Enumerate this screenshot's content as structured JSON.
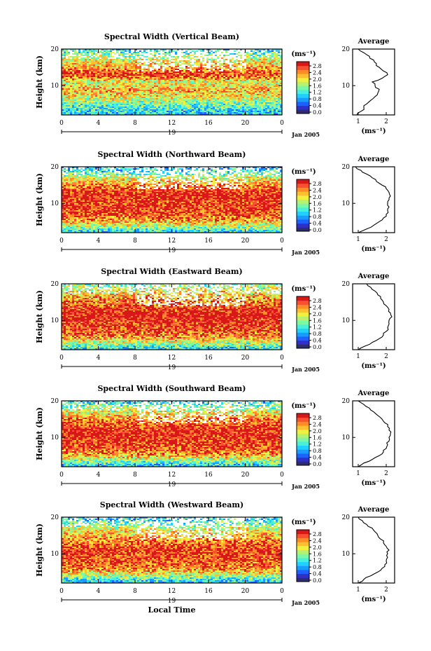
{
  "figure": {
    "x_title": "Local Time",
    "y_title": "Height (km)",
    "colorbar_unit": "(ms⁻¹)",
    "average_title": "Average",
    "average_unit": "(ms⁻¹)",
    "date_label": "Jan 2005",
    "day_label": "19",
    "colormap": [
      "#2c2c6e",
      "#3030c8",
      "#1d62ff",
      "#1a9cff",
      "#20d0ff",
      "#48f0d8",
      "#7cf8a4",
      "#b8f070",
      "#f0f040",
      "#ffc030",
      "#ff8a28",
      "#f85030",
      "#d81818"
    ]
  },
  "chart_data": [
    {
      "type": "heatmap",
      "title": "Spectral Width (Vertical Beam)",
      "xlabel": "",
      "ylabel": "Height (km)",
      "x_ticks": [
        "0",
        "4",
        "8",
        "12",
        "16",
        "20",
        "0"
      ],
      "y_ticks": [
        "10",
        "20"
      ],
      "xlim": [
        0,
        24
      ],
      "ylim": [
        2,
        20
      ],
      "colorbar": {
        "ticks": [
          "0.0",
          "0.4",
          "0.8",
          "1.2",
          "1.6",
          "2.0",
          "2.4",
          "2.8"
        ],
        "range": [
          0,
          2.8
        ]
      },
      "profile": {
        "title": "Average",
        "x_ticks": [
          "1",
          "2"
        ],
        "y_ticks": [
          "10",
          "20"
        ],
        "xlim": [
          0.8,
          2.3
        ],
        "height": [
          2,
          3,
          4,
          5,
          6,
          7,
          8,
          9,
          10,
          11,
          12,
          13,
          14,
          15,
          16,
          17,
          18,
          19,
          20
        ],
        "value": [
          0.95,
          1.1,
          1.2,
          1.3,
          1.45,
          1.6,
          1.7,
          1.75,
          1.6,
          1.5,
          1.85,
          2.05,
          1.9,
          1.75,
          1.65,
          1.55,
          1.4,
          1.2,
          1.0
        ]
      }
    },
    {
      "type": "heatmap",
      "title": "Spectral Width (Northward Beam)",
      "xlabel": "",
      "ylabel": "Height (km)",
      "x_ticks": [
        "0",
        "4",
        "8",
        "12",
        "16",
        "20",
        "0"
      ],
      "y_ticks": [
        "10",
        "20"
      ],
      "xlim": [
        0,
        24
      ],
      "ylim": [
        2,
        20
      ],
      "colorbar": {
        "ticks": [
          "0.0",
          "0.4",
          "0.8",
          "1.2",
          "1.6",
          "2.0",
          "2.4",
          "2.8"
        ],
        "range": [
          0,
          2.8
        ]
      },
      "profile": {
        "title": "Average",
        "x_ticks": [
          "1",
          "2"
        ],
        "y_ticks": [
          "10",
          "20"
        ],
        "xlim": [
          0.8,
          2.3
        ],
        "height": [
          2,
          3,
          4,
          5,
          6,
          7,
          8,
          9,
          10,
          11,
          12,
          13,
          14,
          15,
          16,
          17,
          18,
          19,
          20
        ],
        "value": [
          1.0,
          1.3,
          1.55,
          1.75,
          1.9,
          2.0,
          2.05,
          2.1,
          2.05,
          2.1,
          2.15,
          2.1,
          2.0,
          1.85,
          1.65,
          1.5,
          1.3,
          1.1,
          0.9
        ]
      }
    },
    {
      "type": "heatmap",
      "title": "Spectral Width (Eastward Beam)",
      "xlabel": "",
      "ylabel": "Height (km)",
      "x_ticks": [
        "0",
        "4",
        "8",
        "12",
        "16",
        "20",
        "0"
      ],
      "y_ticks": [
        "10",
        "20"
      ],
      "xlim": [
        0,
        24
      ],
      "ylim": [
        2,
        20
      ],
      "colorbar": {
        "ticks": [
          "0.0",
          "0.4",
          "0.8",
          "1.2",
          "1.6",
          "2.0",
          "2.4",
          "2.8"
        ],
        "range": [
          0,
          2.8
        ]
      },
      "profile": {
        "title": "Average",
        "x_ticks": [
          "1",
          "2"
        ],
        "y_ticks": [
          "10",
          "20"
        ],
        "xlim": [
          0.8,
          2.3
        ],
        "height": [
          2,
          3,
          4,
          5,
          6,
          7,
          8,
          9,
          10,
          11,
          12,
          13,
          14,
          15,
          16,
          17,
          18,
          19,
          20
        ],
        "value": [
          1.0,
          1.25,
          1.5,
          1.75,
          1.9,
          2.0,
          2.05,
          2.1,
          2.1,
          2.2,
          2.15,
          2.1,
          2.0,
          1.9,
          1.8,
          1.7,
          1.6,
          1.45,
          1.3
        ]
      }
    },
    {
      "type": "heatmap",
      "title": "Spectral Width (Southward Beam)",
      "xlabel": "",
      "ylabel": "Height (km)",
      "x_ticks": [
        "0",
        "4",
        "8",
        "12",
        "16",
        "20",
        "0"
      ],
      "y_ticks": [
        "10",
        "20"
      ],
      "xlim": [
        0,
        24
      ],
      "ylim": [
        2,
        20
      ],
      "colorbar": {
        "ticks": [
          "0.0",
          "0.4",
          "0.8",
          "1.2",
          "1.6",
          "2.0",
          "2.4",
          "2.8"
        ],
        "range": [
          0,
          2.8
        ]
      },
      "profile": {
        "title": "Average",
        "x_ticks": [
          "1",
          "2"
        ],
        "y_ticks": [
          "10",
          "20"
        ],
        "xlim": [
          0.8,
          2.3
        ],
        "height": [
          2,
          3,
          4,
          5,
          6,
          7,
          8,
          9,
          10,
          11,
          12,
          13,
          14,
          15,
          16,
          17,
          18,
          19,
          20
        ],
        "value": [
          1.0,
          1.2,
          1.5,
          1.75,
          1.9,
          2.0,
          2.05,
          2.1,
          2.1,
          2.15,
          2.1,
          2.05,
          1.95,
          1.85,
          1.7,
          1.55,
          1.4,
          1.2,
          1.0
        ]
      }
    },
    {
      "type": "heatmap",
      "title": "Spectral Width (Westward Beam)",
      "xlabel": "Local Time",
      "ylabel": "Height (km)",
      "x_ticks": [
        "0",
        "4",
        "8",
        "12",
        "16",
        "20",
        "0"
      ],
      "y_ticks": [
        "10",
        "20"
      ],
      "xlim": [
        0,
        24
      ],
      "ylim": [
        2,
        20
      ],
      "colorbar": {
        "ticks": [
          "0.0",
          "0.4",
          "0.8",
          "1.2",
          "1.6",
          "2.0",
          "2.4",
          "2.8"
        ],
        "range": [
          0,
          2.8
        ]
      },
      "profile": {
        "title": "Average",
        "x_ticks": [
          "1",
          "2"
        ],
        "y_ticks": [
          "10",
          "20"
        ],
        "xlim": [
          0.8,
          2.3
        ],
        "height": [
          2,
          3,
          4,
          5,
          6,
          7,
          8,
          9,
          10,
          11,
          12,
          13,
          14,
          15,
          16,
          17,
          18,
          19,
          20
        ],
        "value": [
          1.0,
          1.2,
          1.45,
          1.7,
          1.85,
          1.95,
          2.0,
          2.05,
          2.05,
          2.1,
          2.0,
          1.9,
          1.8,
          1.7,
          1.6,
          1.5,
          1.3,
          1.15,
          1.0
        ]
      }
    }
  ]
}
